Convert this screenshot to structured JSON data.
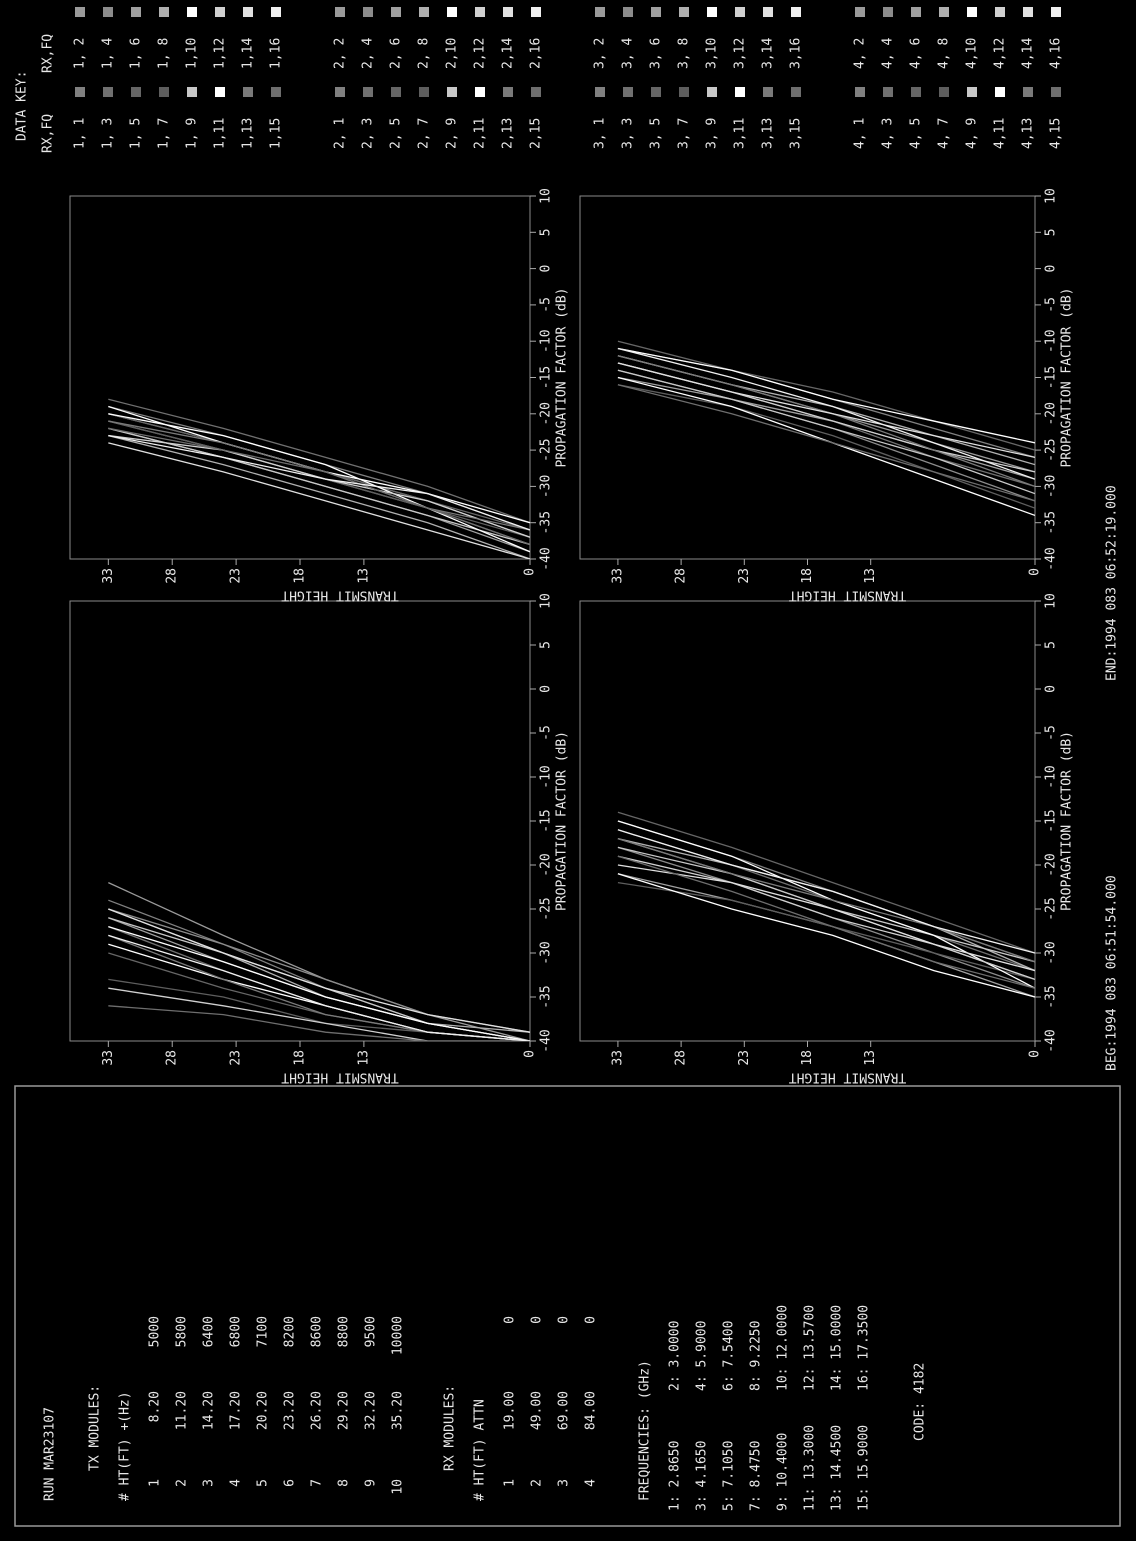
{
  "panel": {
    "run": "RUN MAR23107",
    "tx": {
      "title": "TX MODULES:",
      "header": "# HT(FT) +(Hz)",
      "rows": [
        [
          "1",
          "8.20",
          "5000"
        ],
        [
          "2",
          "11.20",
          "5800"
        ],
        [
          "3",
          "14.20",
          "6400"
        ],
        [
          "4",
          "17.20",
          "6800"
        ],
        [
          "5",
          "20.20",
          "7100"
        ],
        [
          "6",
          "23.20",
          "8200"
        ],
        [
          "7",
          "26.20",
          "8600"
        ],
        [
          "8",
          "29.20",
          "8800"
        ],
        [
          "9",
          "32.20",
          "9500"
        ],
        [
          "10",
          "35.20",
          "10000"
        ]
      ]
    },
    "rx": {
      "title": "RX MODULES:",
      "header": "# HT(FT) ATTN",
      "rows": [
        [
          "1",
          "19.00",
          "0"
        ],
        [
          "2",
          "49.00",
          "0"
        ],
        [
          "3",
          "69.00",
          "0"
        ],
        [
          "4",
          "84.00",
          "0"
        ]
      ]
    },
    "frequencies": {
      "title": "FREQUENCIES: (GHz)",
      "rows": [
        [
          "1: 2.8650",
          "2: 3.0000"
        ],
        [
          "3: 4.1650",
          "4: 5.9000"
        ],
        [
          "5: 7.1050",
          "6: 7.5400"
        ],
        [
          "7: 8.4750",
          "8: 9.2250"
        ],
        [
          "9: 10.4000",
          "10: 12.0000"
        ],
        [
          "11: 13.3000",
          "12: 13.5700"
        ],
        [
          "13: 14.4500",
          "14: 15.0000"
        ],
        [
          "15: 15.9000",
          "16: 17.3500"
        ]
      ]
    },
    "code": "CODE: 4182"
  },
  "time": {
    "begin": "BEG:1994 083 06:51:54.000",
    "end": "END:1994 083 06:52:19.000"
  },
  "key": {
    "title": "DATA KEY:",
    "columns": [
      "RX,FQ",
      "RX,FQ"
    ]
  },
  "chart_data": [
    {
      "type": "line",
      "xlabel": "PROPAGATION FACTOR (dB)",
      "ylabel": "TRANSMIT HEIGHT",
      "xlim": [
        -40,
        10
      ],
      "xticks": [
        -40,
        -35,
        -30,
        -25,
        -20,
        -15,
        -10,
        -5,
        0,
        5,
        10
      ],
      "ylim": [
        0,
        36
      ],
      "yticks": [
        0,
        13,
        18,
        23,
        28,
        33
      ],
      "y": [
        0,
        8,
        16,
        24,
        33
      ],
      "series": [
        {
          "name": "1, 1",
          "color": "#808080",
          "x": [
            -40,
            -38,
            -34,
            -29,
            -24
          ]
        },
        {
          "name": "1, 2",
          "color": "#9a9a9a",
          "x": [
            -40,
            -37,
            -33,
            -28,
            -22
          ]
        },
        {
          "name": "1, 3",
          "color": "#707070",
          "x": [
            -40,
            -39,
            -36,
            -32,
            -27
          ]
        },
        {
          "name": "1, 4",
          "color": "#8c8c8c",
          "x": [
            -39,
            -37,
            -33,
            -29,
            -25
          ]
        },
        {
          "name": "1, 5",
          "color": "#666666",
          "x": [
            -40,
            -39,
            -37,
            -34,
            -30
          ]
        },
        {
          "name": "1, 6",
          "color": "#a0a0a0",
          "x": [
            -40,
            -38,
            -35,
            -31,
            -26
          ]
        },
        {
          "name": "1, 7",
          "color": "#5e5e5e",
          "x": [
            -40,
            -39,
            -38,
            -35,
            -33
          ]
        },
        {
          "name": "1, 8",
          "color": "#b0b0b0",
          "x": [
            -39,
            -38,
            -35,
            -30,
            -25
          ]
        },
        {
          "name": "1, 9",
          "color": "#c8c8c8",
          "x": [
            -40,
            -38,
            -34,
            -30,
            -26
          ]
        },
        {
          "name": "1,10",
          "color": "#ffffff",
          "x": [
            -40,
            -39,
            -36,
            -33,
            -29
          ]
        },
        {
          "name": "1,11",
          "color": "#ffffff",
          "x": [
            -40,
            -38,
            -35,
            -31,
            -27
          ]
        },
        {
          "name": "1,12",
          "color": "#d0d0d0",
          "x": [
            -40,
            -40,
            -38,
            -36,
            -34
          ]
        },
        {
          "name": "1,13",
          "color": "#7a7a7a",
          "x": [
            -40,
            -39,
            -37,
            -33,
            -28
          ]
        },
        {
          "name": "1,14",
          "color": "#e0e0e0",
          "x": [
            -39,
            -37,
            -34,
            -30,
            -25
          ]
        },
        {
          "name": "1,15",
          "color": "#6e6e6e",
          "x": [
            -40,
            -40,
            -39,
            -37,
            -36
          ]
        },
        {
          "name": "1,16",
          "color": "#f0f0f0",
          "x": [
            -40,
            -39,
            -36,
            -32,
            -28
          ]
        }
      ]
    },
    {
      "type": "line",
      "xlabel": "PROPAGATION FACTOR (dB)",
      "ylabel": "TRANSMIT HEIGHT",
      "xlim": [
        -40,
        10
      ],
      "xticks": [
        -40,
        -35,
        -30,
        -25,
        -20,
        -15,
        -10,
        -5,
        0,
        5,
        10
      ],
      "ylim": [
        0,
        36
      ],
      "yticks": [
        0,
        13,
        18,
        23,
        28,
        33
      ],
      "y": [
        0,
        8,
        16,
        24,
        33
      ],
      "series": [
        {
          "name": "2, 1",
          "color": "#808080",
          "x": [
            -36,
            -31,
            -27,
            -23,
            -19
          ]
        },
        {
          "name": "2, 2",
          "color": "#9a9a9a",
          "x": [
            -37,
            -32,
            -28,
            -24,
            -20
          ]
        },
        {
          "name": "2, 3",
          "color": "#707070",
          "x": [
            -35,
            -30,
            -26,
            -22,
            -18
          ]
        },
        {
          "name": "2, 4",
          "color": "#8c8c8c",
          "x": [
            -38,
            -33,
            -29,
            -25,
            -21
          ]
        },
        {
          "name": "2, 5",
          "color": "#666666",
          "x": [
            -36,
            -32,
            -28,
            -24,
            -20
          ]
        },
        {
          "name": "2, 6",
          "color": "#a0a0a0",
          "x": [
            -39,
            -34,
            -30,
            -26,
            -22
          ]
        },
        {
          "name": "2, 7",
          "color": "#5e5e5e",
          "x": [
            -37,
            -33,
            -29,
            -25,
            -21
          ]
        },
        {
          "name": "2, 8",
          "color": "#b0b0b0",
          "x": [
            -40,
            -35,
            -31,
            -27,
            -23
          ]
        },
        {
          "name": "2, 9",
          "color": "#c8c8c8",
          "x": [
            -38,
            -34,
            -30,
            -26,
            -22
          ]
        },
        {
          "name": "2,10",
          "color": "#ffffff",
          "x": [
            -35,
            -31,
            -28,
            -24,
            -19
          ]
        },
        {
          "name": "2,11",
          "color": "#ffffff",
          "x": [
            -39,
            -33,
            -27,
            -23,
            -20
          ]
        },
        {
          "name": "2,12",
          "color": "#d0d0d0",
          "x": [
            -37,
            -32,
            -29,
            -25,
            -23
          ]
        },
        {
          "name": "2,13",
          "color": "#7a7a7a",
          "x": [
            -36,
            -33,
            -28,
            -24,
            -21
          ]
        },
        {
          "name": "2,14",
          "color": "#e0e0e0",
          "x": [
            -40,
            -36,
            -32,
            -28,
            -24
          ]
        },
        {
          "name": "2,15",
          "color": "#6e6e6e",
          "x": [
            -38,
            -33,
            -28,
            -25,
            -22
          ]
        },
        {
          "name": "2,16",
          "color": "#f0f0f0",
          "x": [
            -36,
            -31,
            -29,
            -26,
            -23
          ]
        }
      ]
    },
    {
      "type": "line",
      "xlabel": "PROPAGATION FACTOR (dB)",
      "ylabel": "TRANSMIT HEIGHT",
      "xlim": [
        -40,
        10
      ],
      "xticks": [
        -40,
        -35,
        -30,
        -25,
        -20,
        -15,
        -10,
        -5,
        0,
        5,
        10
      ],
      "ylim": [
        0,
        36
      ],
      "yticks": [
        0,
        13,
        18,
        23,
        28,
        33
      ],
      "y": [
        0,
        8,
        16,
        24,
        33
      ],
      "series": [
        {
          "name": "3, 1",
          "color": "#808080",
          "x": [
            -31,
            -27,
            -23,
            -19,
            -15
          ]
        },
        {
          "name": "3, 2",
          "color": "#9a9a9a",
          "x": [
            -33,
            -29,
            -25,
            -21,
            -17
          ]
        },
        {
          "name": "3, 3",
          "color": "#707070",
          "x": [
            -32,
            -28,
            -24,
            -20,
            -16
          ]
        },
        {
          "name": "3, 4",
          "color": "#8c8c8c",
          "x": [
            -34,
            -30,
            -26,
            -22,
            -18
          ]
        },
        {
          "name": "3, 5",
          "color": "#666666",
          "x": [
            -30,
            -26,
            -22,
            -18,
            -14
          ]
        },
        {
          "name": "3, 6",
          "color": "#a0a0a0",
          "x": [
            -35,
            -31,
            -27,
            -24,
            -21
          ]
        },
        {
          "name": "3, 7",
          "color": "#5e5e5e",
          "x": [
            -33,
            -30,
            -27,
            -24,
            -22
          ]
        },
        {
          "name": "3, 8",
          "color": "#b0b0b0",
          "x": [
            -32,
            -27,
            -23,
            -20,
            -17
          ]
        },
        {
          "name": "3, 9",
          "color": "#c8c8c8",
          "x": [
            -31,
            -28,
            -25,
            -21,
            -18
          ]
        },
        {
          "name": "3,10",
          "color": "#ffffff",
          "x": [
            -34,
            -28,
            -24,
            -19,
            -15
          ]
        },
        {
          "name": "3,11",
          "color": "#ffffff",
          "x": [
            -35,
            -32,
            -28,
            -25,
            -21
          ]
        },
        {
          "name": "3,12",
          "color": "#d0d0d0",
          "x": [
            -33,
            -29,
            -26,
            -22,
            -19
          ]
        },
        {
          "name": "3,13",
          "color": "#7a7a7a",
          "x": [
            -31,
            -27,
            -24,
            -21,
            -17
          ]
        },
        {
          "name": "3,14",
          "color": "#e0e0e0",
          "x": [
            -32,
            -29,
            -25,
            -22,
            -20
          ]
        },
        {
          "name": "3,15",
          "color": "#6e6e6e",
          "x": [
            -34,
            -31,
            -27,
            -23,
            -19
          ]
        },
        {
          "name": "3,16",
          "color": "#f0f0f0",
          "x": [
            -30,
            -27,
            -23,
            -20,
            -16
          ]
        }
      ]
    },
    {
      "type": "line",
      "xlabel": "PROPAGATION FACTOR (dB)",
      "ylabel": "TRANSMIT HEIGHT",
      "xlim": [
        -40,
        10
      ],
      "xticks": [
        -40,
        -35,
        -30,
        -25,
        -20,
        -15,
        -10,
        -5,
        0,
        5,
        10
      ],
      "ylim": [
        0,
        36
      ],
      "yticks": [
        0,
        13,
        18,
        23,
        28,
        33
      ],
      "y": [
        0,
        8,
        16,
        24,
        33
      ],
      "series": [
        {
          "name": "4, 1",
          "color": "#808080",
          "x": [
            -26,
            -22,
            -18,
            -14,
            -11
          ]
        },
        {
          "name": "4, 2",
          "color": "#9a9a9a",
          "x": [
            -28,
            -24,
            -20,
            -16,
            -12
          ]
        },
        {
          "name": "4, 3",
          "color": "#707070",
          "x": [
            -30,
            -26,
            -21,
            -17,
            -13
          ]
        },
        {
          "name": "4, 4",
          "color": "#8c8c8c",
          "x": [
            -32,
            -27,
            -22,
            -18,
            -14
          ]
        },
        {
          "name": "4, 5",
          "color": "#666666",
          "x": [
            -25,
            -21,
            -17,
            -14,
            -10
          ]
        },
        {
          "name": "4, 6",
          "color": "#a0a0a0",
          "x": [
            -29,
            -25,
            -21,
            -18,
            -15
          ]
        },
        {
          "name": "4, 7",
          "color": "#5e5e5e",
          "x": [
            -33,
            -28,
            -23,
            -19,
            -16
          ]
        },
        {
          "name": "4, 8",
          "color": "#b0b0b0",
          "x": [
            -27,
            -23,
            -19,
            -16,
            -12
          ]
        },
        {
          "name": "4, 9",
          "color": "#c8c8c8",
          "x": [
            -31,
            -26,
            -22,
            -18,
            -14
          ]
        },
        {
          "name": "4,10",
          "color": "#ffffff",
          "x": [
            -24,
            -21,
            -18,
            -14,
            -11
          ]
        },
        {
          "name": "4,11",
          "color": "#ffffff",
          "x": [
            -34,
            -29,
            -24,
            -19,
            -15
          ]
        },
        {
          "name": "4,12",
          "color": "#d0d0d0",
          "x": [
            -28,
            -25,
            -21,
            -17,
            -13
          ]
        },
        {
          "name": "4,13",
          "color": "#7a7a7a",
          "x": [
            -30,
            -25,
            -20,
            -16,
            -12
          ]
        },
        {
          "name": "4,14",
          "color": "#e0e0e0",
          "x": [
            -26,
            -23,
            -20,
            -17,
            -13
          ]
        },
        {
          "name": "4,15",
          "color": "#6e6e6e",
          "x": [
            -32,
            -28,
            -24,
            -20,
            -16
          ]
        },
        {
          "name": "4,16",
          "color": "#f0f0f0",
          "x": [
            -29,
            -24,
            -19,
            -15,
            -11
          ]
        }
      ]
    }
  ]
}
